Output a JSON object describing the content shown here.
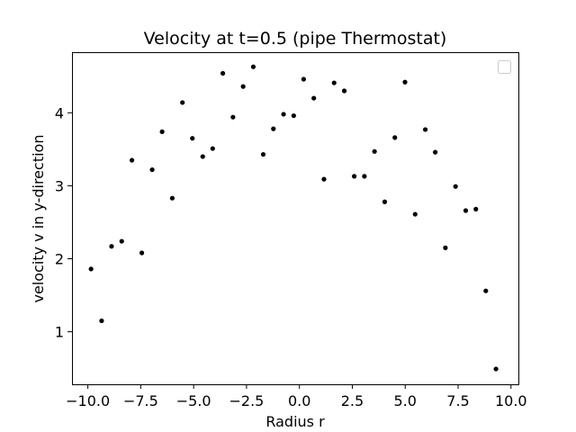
{
  "chart_data": {
    "type": "scatter",
    "title": "Velocity at t=0.5 (pipe Thermostat)",
    "xlabel": "Radius r",
    "ylabel": "velocity v in y-direction",
    "xlim": [
      -10.75,
      10.35
    ],
    "ylim": [
      0.28,
      4.83
    ],
    "xticks": [
      -10.0,
      -7.5,
      -5.0,
      -2.5,
      0.0,
      2.5,
      5.0,
      7.5,
      10.0
    ],
    "xtick_labels": [
      "−10.0",
      "−7.5",
      "−5.0",
      "−2.5",
      "0.0",
      "2.5",
      "5.0",
      "7.5",
      "10.0"
    ],
    "yticks": [
      1,
      2,
      3,
      4
    ],
    "ytick_labels": [
      "1",
      "2",
      "3",
      "4"
    ],
    "grid": false,
    "legend": {
      "location": "top-right",
      "entries": []
    },
    "marker_color": "#000000",
    "series": [
      {
        "name": "",
        "x": [
          -9.85,
          -9.35,
          -8.88,
          -8.4,
          -7.92,
          -7.45,
          -6.96,
          -6.49,
          -6.01,
          -5.53,
          -5.06,
          -4.57,
          -4.1,
          -3.62,
          -3.14,
          -2.66,
          -2.18,
          -1.71,
          -1.23,
          -0.75,
          -0.27,
          0.2,
          0.68,
          1.16,
          1.64,
          2.12,
          2.59,
          3.07,
          3.55,
          4.03,
          4.51,
          4.99,
          5.47,
          5.95,
          6.42,
          6.9,
          7.38,
          7.86,
          8.34,
          8.81,
          9.29
        ],
        "y": [
          1.86,
          1.15,
          2.17,
          2.24,
          3.35,
          2.08,
          3.22,
          3.74,
          2.83,
          4.14,
          3.65,
          3.4,
          3.51,
          4.54,
          3.94,
          4.36,
          4.63,
          3.43,
          3.78,
          3.98,
          3.96,
          4.46,
          4.2,
          3.09,
          4.41,
          4.3,
          3.13,
          3.13,
          3.47,
          2.78,
          3.66,
          4.42,
          2.61,
          3.77,
          3.46,
          2.15,
          2.99,
          2.66,
          2.68,
          1.56,
          0.49
        ]
      }
    ]
  }
}
